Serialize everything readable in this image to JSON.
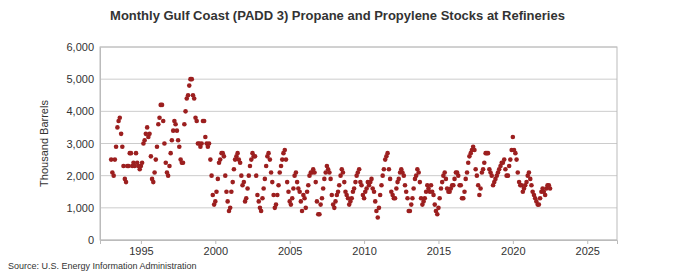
{
  "chart_data": {
    "type": "scatter",
    "title": "Monthly Gulf Coast (PADD 3) Propane and Propylene Stocks at Refineries",
    "y_label": "Thousand Barrels",
    "source": "Source: U.S. Energy Information Administration",
    "color": "#9c1f1f",
    "marker": "circle",
    "grid": true,
    "xlim": [
      1992.25,
      2027
    ],
    "xticks": [
      1995,
      2000,
      2005,
      2010,
      2015,
      2020,
      2025
    ],
    "ylim": [
      0,
      6000
    ],
    "yticks": [
      0,
      {
        "value": 1000,
        "label": "1,000"
      },
      {
        "value": 2000,
        "label": "2,000"
      },
      {
        "value": 3000,
        "label": "3,000"
      },
      {
        "value": 4000,
        "label": "4,000"
      },
      {
        "value": 5000,
        "label": "5,000"
      },
      {
        "value": 6000,
        "label": "6,000"
      }
    ],
    "x": [
      1993,
      1993.08,
      1993.17,
      1993.25,
      1993.33,
      1993.42,
      1993.5,
      1993.58,
      1993.67,
      1993.75,
      1993.83,
      1993.92,
      1994,
      1994.08,
      1994.17,
      1994.25,
      1994.33,
      1994.42,
      1994.5,
      1994.58,
      1994.67,
      1994.75,
      1994.83,
      1994.92,
      1995,
      1995.08,
      1995.17,
      1995.25,
      1995.33,
      1995.42,
      1995.5,
      1995.58,
      1995.67,
      1995.75,
      1995.83,
      1995.92,
      1996,
      1996.08,
      1996.17,
      1996.25,
      1996.33,
      1996.42,
      1996.5,
      1996.58,
      1996.67,
      1996.75,
      1996.83,
      1996.92,
      1997,
      1997.08,
      1997.17,
      1997.25,
      1997.33,
      1997.42,
      1997.5,
      1997.58,
      1997.67,
      1997.75,
      1997.83,
      1997.92,
      1998,
      1998.08,
      1998.17,
      1998.25,
      1998.33,
      1998.42,
      1998.5,
      1998.58,
      1998.67,
      1998.75,
      1998.83,
      1998.92,
      1999,
      1999.08,
      1999.17,
      1999.25,
      1999.33,
      1999.42,
      1999.5,
      1999.58,
      1999.67,
      1999.75,
      1999.83,
      1999.92,
      2000,
      2000.08,
      2000.17,
      2000.25,
      2000.33,
      2000.42,
      2000.5,
      2000.58,
      2000.67,
      2000.75,
      2000.83,
      2000.92,
      2001,
      2001.08,
      2001.17,
      2001.25,
      2001.33,
      2001.42,
      2001.5,
      2001.58,
      2001.67,
      2001.75,
      2001.83,
      2001.92,
      2002,
      2002.08,
      2002.17,
      2002.25,
      2002.33,
      2002.42,
      2002.5,
      2002.58,
      2002.67,
      2002.75,
      2002.83,
      2002.92,
      2003,
      2003.08,
      2003.17,
      2003.25,
      2003.33,
      2003.42,
      2003.5,
      2003.58,
      2003.67,
      2003.75,
      2003.83,
      2003.92,
      2004,
      2004.08,
      2004.17,
      2004.25,
      2004.33,
      2004.42,
      2004.5,
      2004.58,
      2004.67,
      2004.75,
      2004.83,
      2004.92,
      2005,
      2005.08,
      2005.17,
      2005.25,
      2005.33,
      2005.42,
      2005.5,
      2005.58,
      2005.67,
      2005.75,
      2005.83,
      2005.92,
      2006,
      2006.08,
      2006.17,
      2006.25,
      2006.33,
      2006.42,
      2006.5,
      2006.58,
      2006.67,
      2006.75,
      2006.83,
      2006.92,
      2007,
      2007.08,
      2007.17,
      2007.25,
      2007.33,
      2007.42,
      2007.5,
      2007.58,
      2007.67,
      2007.75,
      2007.83,
      2007.92,
      2008,
      2008.08,
      2008.17,
      2008.25,
      2008.33,
      2008.42,
      2008.5,
      2008.58,
      2008.67,
      2008.75,
      2008.83,
      2008.92,
      2009,
      2009.08,
      2009.17,
      2009.25,
      2009.33,
      2009.42,
      2009.5,
      2009.58,
      2009.67,
      2009.75,
      2009.83,
      2009.92,
      2010,
      2010.08,
      2010.17,
      2010.25,
      2010.33,
      2010.42,
      2010.5,
      2010.58,
      2010.67,
      2010.75,
      2010.83,
      2010.92,
      2011,
      2011.08,
      2011.17,
      2011.25,
      2011.33,
      2011.42,
      2011.5,
      2011.58,
      2011.67,
      2011.75,
      2011.83,
      2011.92,
      2012,
      2012.08,
      2012.17,
      2012.25,
      2012.33,
      2012.42,
      2012.5,
      2012.58,
      2012.67,
      2012.75,
      2012.83,
      2012.92,
      2013,
      2013.08,
      2013.17,
      2013.25,
      2013.33,
      2013.42,
      2013.5,
      2013.58,
      2013.67,
      2013.75,
      2013.83,
      2013.92,
      2014,
      2014.08,
      2014.17,
      2014.25,
      2014.33,
      2014.42,
      2014.5,
      2014.58,
      2014.67,
      2014.75,
      2014.83,
      2014.92,
      2015,
      2015.08,
      2015.17,
      2015.25,
      2015.33,
      2015.42,
      2015.5,
      2015.58,
      2015.67,
      2015.75,
      2015.83,
      2015.92,
      2016,
      2016.08,
      2016.17,
      2016.25,
      2016.33,
      2016.42,
      2016.5,
      2016.58,
      2016.67,
      2016.75,
      2016.83,
      2016.92,
      2017,
      2017.08,
      2017.17,
      2017.25,
      2017.33,
      2017.42,
      2017.5,
      2017.58,
      2017.67,
      2017.75,
      2017.83,
      2017.92,
      2018,
      2018.08,
      2018.17,
      2018.25,
      2018.33,
      2018.42,
      2018.5,
      2018.58,
      2018.67,
      2018.75,
      2018.83,
      2018.92,
      2019,
      2019.08,
      2019.17,
      2019.25,
      2019.33,
      2019.42,
      2019.5,
      2019.58,
      2019.67,
      2019.75,
      2019.83,
      2019.92,
      2020,
      2020.08,
      2020.17,
      2020.25,
      2020.33,
      2020.42,
      2020.5,
      2020.58,
      2020.67,
      2020.75,
      2020.83,
      2020.92,
      2021,
      2021.08,
      2021.17,
      2021.25,
      2021.33,
      2021.42,
      2021.5,
      2021.58,
      2021.67,
      2021.75,
      2021.83,
      2021.92,
      2022,
      2022.08,
      2022.17,
      2022.25,
      2022.33,
      2022.42,
      2022.5
    ],
    "values": [
      2500,
      2100,
      2000,
      2500,
      2900,
      3500,
      3700,
      3800,
      3300,
      2900,
      2300,
      1900,
      1800,
      2300,
      2300,
      2700,
      2700,
      2300,
      2400,
      2300,
      2700,
      2400,
      2300,
      2200,
      2300,
      2400,
      3000,
      3100,
      3300,
      3500,
      3200,
      3300,
      2600,
      1900,
      1800,
      2100,
      2500,
      2900,
      3600,
      3800,
      4200,
      4200,
      3700,
      3000,
      2400,
      2100,
      2000,
      2300,
      2700,
      3100,
      3400,
      3700,
      3600,
      3400,
      3100,
      2900,
      2500,
      2400,
      2400,
      3600,
      4000,
      4400,
      4500,
      4800,
      5000,
      5000,
      4500,
      4400,
      3800,
      3700,
      3000,
      3000,
      2900,
      3000,
      3700,
      3700,
      3200,
      3000,
      2900,
      3000,
      2500,
      2000,
      1400,
      1100,
      1200,
      1500,
      1900,
      2400,
      2500,
      2700,
      2700,
      2600,
      2000,
      1500,
      1200,
      900,
      1000,
      1500,
      1800,
      2200,
      2500,
      2600,
      2700,
      2500,
      2400,
      2000,
      1700,
      1800,
      1200,
      1300,
      1600,
      2000,
      2300,
      2500,
      2700,
      2600,
      2600,
      2000,
      1400,
      1200,
      1000,
      900,
      1300,
      1600,
      1900,
      2300,
      2600,
      2700,
      2500,
      2100,
      1800,
      1400,
      1000,
      1100,
      1400,
      1700,
      2100,
      2300,
      2500,
      2700,
      2800,
      2500,
      1800,
      1500,
      1200,
      1100,
      1300,
      1600,
      2000,
      2100,
      1800,
      1600,
      1500,
      1200,
      900,
      1400,
      1300,
      1000,
      1500,
      1700,
      2000,
      2100,
      2100,
      2200,
      2100,
      1800,
      1200,
      800,
      800,
      1100,
      1300,
      1600,
      1900,
      2100,
      2300,
      2200,
      2100,
      1900,
      1400,
      1100,
      1000,
      1200,
      1400,
      1500,
      1700,
      2000,
      2200,
      2100,
      1800,
      1500,
      1400,
      1300,
      1100,
      1200,
      1300,
      1500,
      1600,
      1800,
      2000,
      2100,
      2200,
      1800,
      1700,
      1400,
      1300,
      1500,
      1600,
      1800,
      1700,
      1800,
      1900,
      1600,
      1500,
      1200,
      900,
      700,
      1000,
      1400,
      1700,
      2000,
      2200,
      2500,
      2600,
      2700,
      2200,
      1900,
      1500,
      1400,
      1300,
      1300,
      1600,
      1800,
      1900,
      2100,
      2200,
      2100,
      2000,
      1700,
      1500,
      1300,
      900,
      900,
      1100,
      1300,
      1600,
      1900,
      2000,
      2200,
      2100,
      1800,
      1300,
      1100,
      1200,
      1300,
      1500,
      1700,
      1600,
      1500,
      1700,
      1500,
      1400,
      1100,
      900,
      800,
      1000,
      1300,
      1600,
      1800,
      2000,
      2100,
      1900,
      1600,
      1500,
      1500,
      1600,
      1700,
      1700,
      1900,
      2100,
      2100,
      2000,
      1700,
      1700,
      1300,
      1300,
      1500,
      1900,
      2100,
      2400,
      2600,
      2700,
      2800,
      2900,
      2800,
      2200,
      2000,
      1700,
      1400,
      1600,
      2100,
      2200,
      2400,
      2700,
      2700,
      2700,
      2200,
      2100,
      2000,
      1700,
      1800,
      1900,
      2000,
      2100,
      2200,
      2300,
      2400,
      2400,
      2500,
      2200,
      2000,
      2000,
      2300,
      2500,
      2800,
      3200,
      2800,
      2700,
      2500,
      2100,
      1800,
      1700,
      1700,
      1500,
      1600,
      1700,
      1800,
      2000,
      2100,
      1900,
      1700,
      1500,
      1400,
      1300,
      1200,
      1100,
      1100,
      1300,
      1500,
      1600,
      1500,
      1400,
      1600,
      1700,
      1700,
      1600
    ]
  }
}
